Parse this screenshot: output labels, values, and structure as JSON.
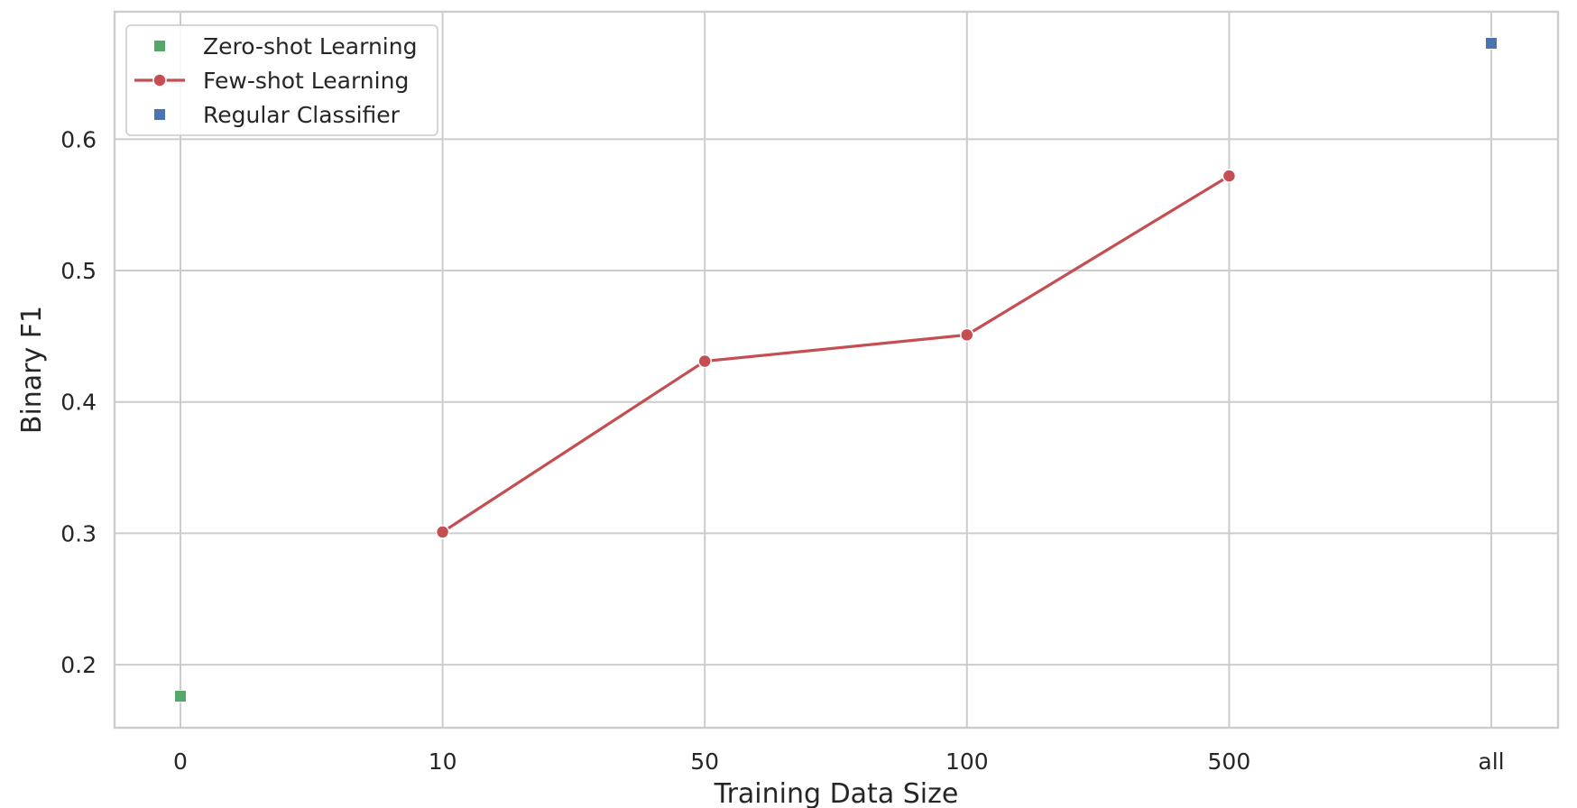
{
  "chart_data": {
    "type": "line",
    "categories": [
      "0",
      "10",
      "50",
      "100",
      "500",
      "all"
    ],
    "xlabel": "Training Data Size",
    "ylabel": "Binary F1",
    "yticks": [
      "0.2",
      "0.3",
      "0.4",
      "0.5",
      "0.6"
    ],
    "ylim": [
      0.152,
      0.697
    ],
    "grid": true,
    "legend_position": "top-left",
    "series": [
      {
        "name": "Zero-shot Learning",
        "style": "marker-only",
        "marker": "square",
        "color": "#55a868",
        "points": [
          {
            "x": "0",
            "y": 0.176
          }
        ]
      },
      {
        "name": "Few-shot Learning",
        "style": "line-marker",
        "marker": "circle",
        "color": "#c44e52",
        "points": [
          {
            "x": "10",
            "y": 0.301
          },
          {
            "x": "50",
            "y": 0.431
          },
          {
            "x": "100",
            "y": 0.451
          },
          {
            "x": "500",
            "y": 0.572
          }
        ]
      },
      {
        "name": "Regular Classifier",
        "style": "marker-only",
        "marker": "square",
        "color": "#4c72b0",
        "points": [
          {
            "x": "all",
            "y": 0.673
          }
        ]
      }
    ]
  }
}
